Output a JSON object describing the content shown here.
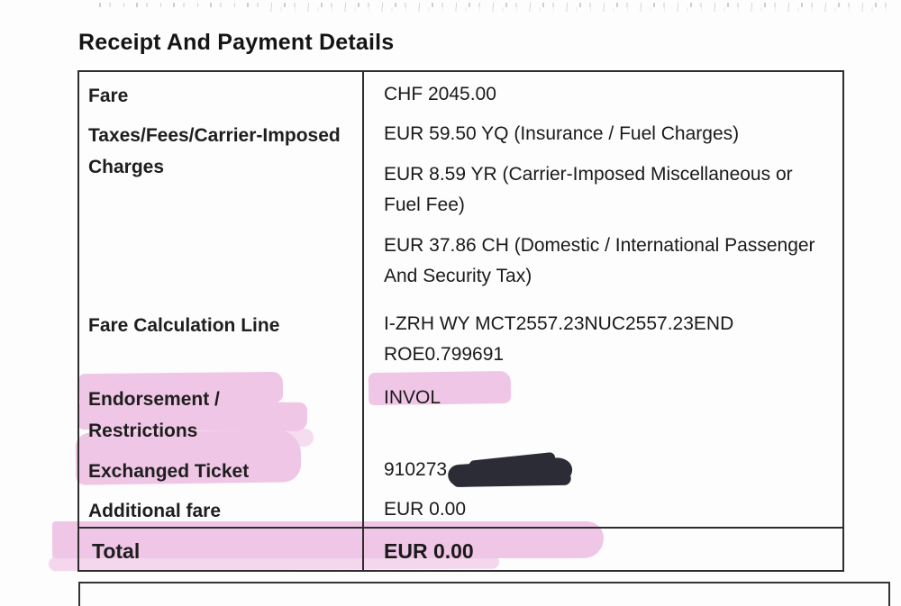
{
  "title": "Receipt And Payment Details",
  "receipt_table": {
    "rows": [
      {
        "label": "Fare",
        "values": [
          "CHF 2045.00"
        ]
      },
      {
        "label": "Taxes/Fees/Carrier-Imposed Charges",
        "values": [
          "EUR 59.50 YQ (Insurance / Fuel Charges)",
          "EUR 8.59 YR (Carrier-Imposed Miscellaneous or Fuel Fee)",
          "EUR 37.86 CH (Domestic / International Passenger And Security Tax)"
        ]
      },
      {
        "label": "Fare Calculation Line",
        "values": [
          "I-ZRH WY MCT2557.23NUC2557.23END ROE0.799691"
        ]
      },
      {
        "label": "Endorsement / Restrictions",
        "values": [
          "INVOL"
        ]
      },
      {
        "label": "Exchanged Ticket",
        "values": [
          "910273"
        ],
        "redacted": true
      },
      {
        "label": "Additional fare",
        "values": [
          "EUR 0.00"
        ]
      },
      {
        "label": "Total",
        "values": [
          "EUR 0.00"
        ]
      }
    ]
  },
  "annotations": {
    "highlighter_color": "#f0c6e6",
    "redaction_ink_color": "#2c2c36",
    "highlighted_items": [
      "Endorsement / Restrictions",
      "INVOL",
      "Exchanged Ticket",
      "Total row"
    ]
  }
}
